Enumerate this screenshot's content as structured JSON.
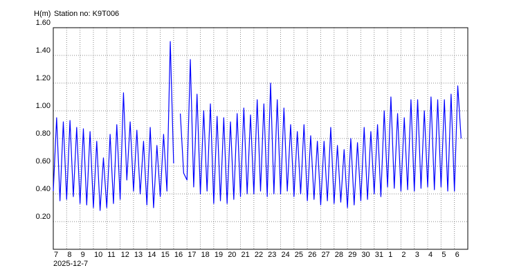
{
  "chart_data": {
    "type": "line",
    "title": "Station no: K9T006",
    "y_label": "H(m)",
    "x_note": "2025-12-7",
    "xlim": [
      0,
      31
    ],
    "ylim": [
      0,
      1.6
    ],
    "yticks": [
      {
        "value": 0.2,
        "label": "0.20"
      },
      {
        "value": 0.4,
        "label": "0.40"
      },
      {
        "value": 0.6,
        "label": "0.60"
      },
      {
        "value": 0.8,
        "label": "0.80"
      },
      {
        "value": 1.0,
        "label": "1.00"
      },
      {
        "value": 1.2,
        "label": "1.20"
      },
      {
        "value": 1.4,
        "label": "1.40"
      },
      {
        "value": 1.6,
        "label": "1.60"
      }
    ],
    "xticks": [
      {
        "value": 0,
        "label": "7"
      },
      {
        "value": 1,
        "label": "8"
      },
      {
        "value": 2,
        "label": "9"
      },
      {
        "value": 3,
        "label": "10"
      },
      {
        "value": 4,
        "label": "11"
      },
      {
        "value": 5,
        "label": "12"
      },
      {
        "value": 6,
        "label": "13"
      },
      {
        "value": 7,
        "label": "14"
      },
      {
        "value": 8,
        "label": "15"
      },
      {
        "value": 9,
        "label": "16"
      },
      {
        "value": 10,
        "label": "17"
      },
      {
        "value": 11,
        "label": "18"
      },
      {
        "value": 12,
        "label": "19"
      },
      {
        "value": 13,
        "label": "20"
      },
      {
        "value": 14,
        "label": "21"
      },
      {
        "value": 15,
        "label": "22"
      },
      {
        "value": 16,
        "label": "23"
      },
      {
        "value": 17,
        "label": "24"
      },
      {
        "value": 18,
        "label": "25"
      },
      {
        "value": 19,
        "label": "26"
      },
      {
        "value": 20,
        "label": "27"
      },
      {
        "value": 21,
        "label": "28"
      },
      {
        "value": 22,
        "label": "29"
      },
      {
        "value": 23,
        "label": "30"
      },
      {
        "value": 24,
        "label": "31"
      },
      {
        "value": 25,
        "label": "1"
      },
      {
        "value": 26,
        "label": "2"
      },
      {
        "value": 27,
        "label": "3"
      },
      {
        "value": 28,
        "label": "4"
      },
      {
        "value": 29,
        "label": "5"
      },
      {
        "value": 30,
        "label": "6"
      }
    ],
    "grid": true,
    "x": [
      0,
      0.25,
      0.5,
      0.75,
      1,
      1.25,
      1.5,
      1.75,
      2,
      2.25,
      2.5,
      2.75,
      3,
      3.25,
      3.5,
      3.75,
      4,
      4.25,
      4.5,
      4.75,
      5,
      5.25,
      5.5,
      5.75,
      6,
      6.25,
      6.5,
      6.75,
      7,
      7.25,
      7.5,
      7.75,
      8,
      8.25,
      8.5,
      8.75,
      9,
      9.25,
      9.5,
      9.75,
      10,
      10.25,
      10.5,
      10.75,
      11,
      11.25,
      11.5,
      11.75,
      12,
      12.25,
      12.5,
      12.75,
      13,
      13.25,
      13.5,
      13.75,
      14,
      14.25,
      14.5,
      14.75,
      15,
      15.25,
      15.5,
      15.75,
      16,
      16.25,
      16.5,
      16.75,
      17,
      17.25,
      17.5,
      17.75,
      18,
      18.25,
      18.5,
      18.75,
      19,
      19.25,
      19.5,
      19.75,
      20,
      20.25,
      20.5,
      20.75,
      21,
      21.25,
      21.5,
      21.75,
      22,
      22.25,
      22.5,
      22.75,
      23,
      23.25,
      23.5,
      23.75,
      24,
      24.25,
      24.5,
      24.75,
      25,
      25.25,
      25.5,
      25.75,
      26,
      26.25,
      26.5,
      26.75,
      27,
      27.25,
      27.5,
      27.75,
      28,
      28.25,
      28.5,
      28.75,
      29,
      29.25,
      29.5,
      29.75,
      30,
      30.25,
      30.5
    ],
    "series": [
      {
        "name": "H",
        "color": "#0000ff",
        "values": [
          0.42,
          0.95,
          0.35,
          0.92,
          0.36,
          0.93,
          0.38,
          0.88,
          0.33,
          0.87,
          0.32,
          0.85,
          0.3,
          0.78,
          0.28,
          0.66,
          0.3,
          0.83,
          0.33,
          0.9,
          0.36,
          1.13,
          0.5,
          0.92,
          0.42,
          0.86,
          0.4,
          0.78,
          0.32,
          0.88,
          0.3,
          0.75,
          0.38,
          0.83,
          0.42,
          1.5,
          0.62,
          null,
          0.98,
          0.55,
          0.5,
          1.37,
          0.45,
          1.12,
          0.4,
          1.0,
          0.42,
          1.05,
          0.33,
          0.96,
          0.35,
          0.95,
          0.33,
          0.92,
          0.36,
          0.98,
          0.38,
          1.02,
          0.4,
          0.97,
          0.4,
          1.08,
          0.42,
          1.05,
          0.38,
          1.2,
          0.4,
          1.08,
          0.4,
          1.02,
          0.42,
          0.9,
          0.38,
          0.85,
          0.4,
          0.9,
          0.35,
          0.82,
          0.36,
          0.78,
          0.32,
          0.78,
          0.35,
          0.88,
          0.33,
          0.75,
          0.34,
          0.72,
          0.3,
          0.8,
          0.32,
          0.77,
          0.35,
          0.88,
          0.36,
          0.85,
          0.4,
          0.9,
          0.38,
          1.0,
          0.45,
          1.1,
          0.44,
          0.98,
          0.42,
          0.95,
          0.43,
          1.08,
          0.42,
          1.08,
          0.44,
          1.0,
          0.45,
          1.1,
          0.43,
          1.08,
          0.45,
          1.08,
          0.42,
          1.12,
          0.42,
          1.18,
          0.8
        ]
      }
    ]
  }
}
